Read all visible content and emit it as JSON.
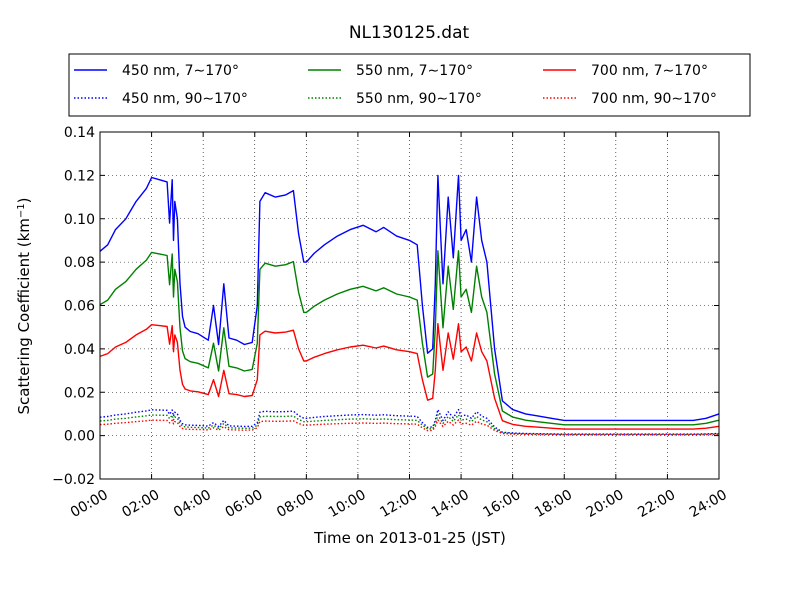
{
  "chart_data": {
    "type": "line",
    "title": "NL130125.dat",
    "xlabel": "Time on 2013-01-25 (JST)",
    "ylabel": "Scattering Coefficient (km",
    "ylabel_sup": "−1",
    "ylabel_close": ")",
    "xlim": [
      0,
      24
    ],
    "ylim": [
      -0.02,
      0.14
    ],
    "grid": true,
    "legend_position": "top",
    "x_ticks": [
      0,
      2,
      4,
      6,
      8,
      10,
      12,
      14,
      16,
      18,
      20,
      22,
      24
    ],
    "x_tick_labels": [
      "00:00",
      "02:00",
      "04:00",
      "06:00",
      "08:00",
      "10:00",
      "12:00",
      "14:00",
      "16:00",
      "18:00",
      "20:00",
      "22:00",
      "24:00"
    ],
    "y_ticks": [
      -0.02,
      0.0,
      0.02,
      0.04,
      0.06,
      0.08,
      0.1,
      0.12,
      0.14
    ],
    "y_tick_labels": [
      "−0.02",
      "0.00",
      "0.02",
      "0.04",
      "0.06",
      "0.08",
      "0.10",
      "0.12",
      "0.14"
    ],
    "series": [
      {
        "name": "450 nm, 7∼170°",
        "color": "#0000ff",
        "style": "solid",
        "scale": 1.0,
        "offset": 0.0
      },
      {
        "name": "550 nm, 7∼170°",
        "color": "#008000",
        "style": "solid",
        "scale": 0.71,
        "offset": 0.0
      },
      {
        "name": "700 nm, 7∼170°",
        "color": "#ff0000",
        "style": "solid",
        "scale": 0.43,
        "offset": 0.0
      },
      {
        "name": "450 nm, 90∼170°",
        "color": "#0000ff",
        "style": "dotted",
        "scale": 0.1,
        "offset": 0.0
      },
      {
        "name": "550 nm, 90∼170°",
        "color": "#008000",
        "style": "dotted",
        "scale": 0.08,
        "offset": 0.0
      },
      {
        "name": "700 nm, 90∼170°",
        "color": "#ff0000",
        "style": "dotted",
        "scale": 0.06,
        "offset": 0.0
      }
    ],
    "base_series_x": [
      0.0,
      0.3,
      0.6,
      1.0,
      1.4,
      1.8,
      2.0,
      2.3,
      2.6,
      2.7,
      2.8,
      2.85,
      2.9,
      3.0,
      3.1,
      3.2,
      3.3,
      3.5,
      3.8,
      4.2,
      4.4,
      4.6,
      4.8,
      5.0,
      5.3,
      5.6,
      5.9,
      6.1,
      6.2,
      6.4,
      6.8,
      7.2,
      7.5,
      7.7,
      7.9,
      8.0,
      8.3,
      8.7,
      9.2,
      9.7,
      10.2,
      10.7,
      11.0,
      11.5,
      12.0,
      12.3,
      12.5,
      12.7,
      12.9,
      13.0,
      13.1,
      13.2,
      13.3,
      13.5,
      13.7,
      13.9,
      14.0,
      14.2,
      14.4,
      14.6,
      14.8,
      15.0,
      15.3,
      15.6,
      16.0,
      16.5,
      17.0,
      17.5,
      18.0,
      19.0,
      20.0,
      21.0,
      22.0,
      23.0,
      23.5,
      24.0
    ],
    "base_series_y": [
      0.085,
      0.088,
      0.095,
      0.1,
      0.108,
      0.114,
      0.119,
      0.118,
      0.117,
      0.098,
      0.118,
      0.09,
      0.108,
      0.1,
      0.07,
      0.055,
      0.05,
      0.048,
      0.047,
      0.044,
      0.06,
      0.042,
      0.07,
      0.045,
      0.044,
      0.042,
      0.043,
      0.06,
      0.108,
      0.112,
      0.11,
      0.111,
      0.113,
      0.093,
      0.08,
      0.08,
      0.084,
      0.088,
      0.092,
      0.095,
      0.097,
      0.094,
      0.096,
      0.092,
      0.09,
      0.088,
      0.06,
      0.038,
      0.04,
      0.07,
      0.12,
      0.095,
      0.07,
      0.11,
      0.082,
      0.12,
      0.09,
      0.095,
      0.08,
      0.11,
      0.09,
      0.08,
      0.04,
      0.016,
      0.012,
      0.01,
      0.009,
      0.008,
      0.007,
      0.007,
      0.007,
      0.007,
      0.007,
      0.007,
      0.008,
      0.01
    ]
  }
}
